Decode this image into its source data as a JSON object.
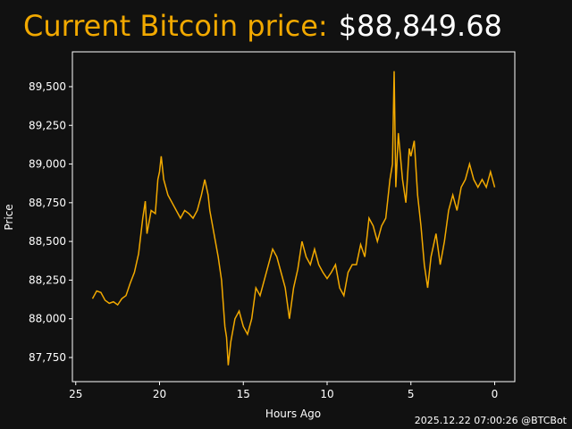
{
  "chart_data": {
    "type": "line",
    "title": "Current Bitcoin price:",
    "price": "$88,849.68",
    "footer": "2025.12.22 07:00:26 @BTCBot",
    "xlabel": "Hours Ago",
    "ylabel": "Price",
    "color": "#f2a900",
    "title_color": "#f2a900",
    "xlim": [
      25.2,
      -1.2
    ],
    "ylim": [
      87594,
      89725
    ],
    "xticks": [
      25,
      20,
      15,
      10,
      5,
      0
    ],
    "yticks": [
      {
        "value": 87750,
        "label": "87,750"
      },
      {
        "value": 88000,
        "label": "88,000"
      },
      {
        "value": 88250,
        "label": "88,250"
      },
      {
        "value": 88500,
        "label": "88,500"
      },
      {
        "value": 88750,
        "label": "88,750"
      },
      {
        "value": 89000,
        "label": "89,000"
      },
      {
        "value": 89250,
        "label": "89,250"
      },
      {
        "value": 89500,
        "label": "89,500"
      }
    ],
    "x": [
      24.0,
      23.75,
      23.5,
      23.25,
      23.0,
      22.75,
      22.5,
      22.25,
      22.0,
      21.75,
      21.5,
      21.25,
      21.0,
      20.85,
      20.75,
      20.5,
      20.25,
      20.1,
      20.0,
      19.9,
      19.75,
      19.5,
      19.25,
      19.0,
      18.75,
      18.5,
      18.25,
      18.0,
      17.75,
      17.5,
      17.3,
      17.1,
      17.0,
      16.75,
      16.5,
      16.3,
      16.1,
      16.0,
      15.9,
      15.75,
      15.5,
      15.25,
      15.0,
      14.75,
      14.5,
      14.25,
      14.0,
      13.75,
      13.5,
      13.25,
      13.0,
      12.75,
      12.5,
      12.25,
      12.0,
      11.75,
      11.5,
      11.25,
      11.0,
      10.75,
      10.5,
      10.25,
      10.0,
      9.75,
      9.5,
      9.25,
      9.0,
      8.75,
      8.5,
      8.25,
      8.0,
      7.75,
      7.5,
      7.25,
      7.0,
      6.75,
      6.5,
      6.25,
      6.1,
      6.0,
      5.9,
      5.75,
      5.5,
      5.3,
      5.1,
      5.0,
      4.8,
      4.6,
      4.4,
      4.2,
      4.0,
      3.8,
      3.5,
      3.25,
      3.0,
      2.75,
      2.5,
      2.25,
      2.0,
      1.75,
      1.5,
      1.25,
      1.0,
      0.75,
      0.5,
      0.25,
      0.0
    ],
    "values": [
      88130,
      88180,
      88170,
      88120,
      88100,
      88110,
      88090,
      88130,
      88150,
      88230,
      88300,
      88420,
      88650,
      88760,
      88550,
      88700,
      88680,
      88900,
      88950,
      89050,
      88900,
      88800,
      88750,
      88700,
      88650,
      88700,
      88680,
      88650,
      88700,
      88800,
      88900,
      88800,
      88700,
      88550,
      88400,
      88250,
      87950,
      87880,
      87700,
      87850,
      88000,
      88050,
      87950,
      87900,
      88000,
      88200,
      88150,
      88250,
      88350,
      88450,
      88400,
      88300,
      88200,
      88000,
      88200,
      88320,
      88500,
      88400,
      88350,
      88450,
      88350,
      88300,
      88260,
      88300,
      88350,
      88200,
      88150,
      88300,
      88350,
      88350,
      88480,
      88400,
      88650,
      88600,
      88500,
      88600,
      88650,
      88900,
      89000,
      89600,
      88850,
      89200,
      88900,
      88750,
      89100,
      89050,
      89150,
      88800,
      88600,
      88350,
      88200,
      88400,
      88550,
      88350,
      88500,
      88700,
      88800,
      88700,
      88850,
      88900,
      89000,
      88900,
      88850,
      88900,
      88850,
      88950,
      88850
    ]
  }
}
